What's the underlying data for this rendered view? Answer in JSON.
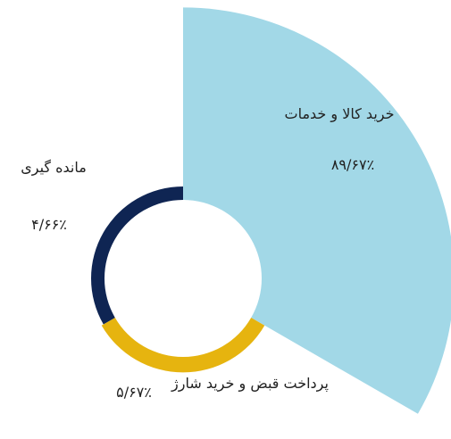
{
  "chart_data": {
    "type": "pie",
    "categories": [
      "خرید کالا و خدمات",
      "پرداخت قبض و خرید شارژ",
      "مانده گیری"
    ],
    "values": [
      89.67,
      5.67,
      4.66
    ],
    "value_labels": [
      "۸۹/۶۷٪",
      "۵/۶۷٪",
      "۴/۶۶٪"
    ],
    "colors": [
      "#a2d8e7",
      "#e6b40f",
      "#0f2553"
    ]
  }
}
